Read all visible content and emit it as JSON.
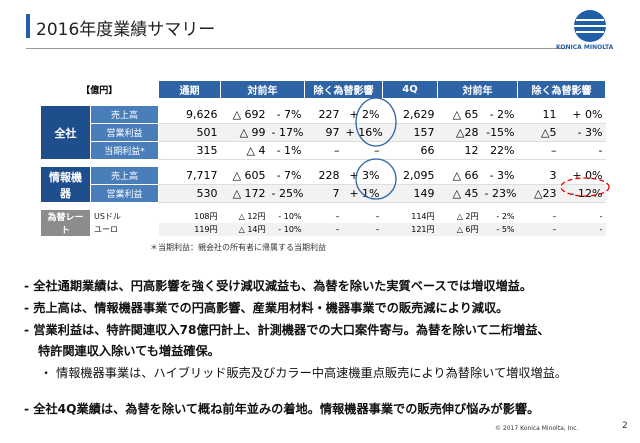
{
  "header": {
    "title": "2016年度業績サマリー",
    "logo": "KONICA MINOLTA"
  },
  "table": {
    "unit": "【億円】",
    "columns": [
      "通期",
      "対前年",
      "除く為替影響",
      "4Q",
      "対前年",
      "除く為替影響"
    ],
    "groups": [
      {
        "label": "全社",
        "rows": [
          {
            "label": "売上高",
            "cells": [
              "9,626",
              "△ 692",
              "- 7%",
              "227",
              "+ 2%",
              "2,629",
              "△ 65",
              "- 2%",
              "11",
              "+ 0%"
            ]
          },
          {
            "label": "営業利益",
            "cells": [
              "501",
              "△ 99",
              "- 17%",
              "97",
              "+ 16%",
              "157",
              "△28",
              "-15%",
              "△5",
              "- 3%"
            ]
          },
          {
            "label": "当期利益*",
            "cells": [
              "315",
              "△ 4",
              "- 1%",
              "–",
              "–",
              "66",
              "12",
              "22%",
              "–",
              "-"
            ]
          }
        ]
      },
      {
        "label": "情報機器",
        "rows": [
          {
            "label": "売上高",
            "cells": [
              "7,717",
              "△ 605",
              "- 7%",
              "228",
              "+ 3%",
              "2,095",
              "△ 66",
              "- 3%",
              "3",
              "+ 0%"
            ]
          },
          {
            "label": "営業利益",
            "cells": [
              "530",
              "△ 172",
              "- 25%",
              "7",
              "+ 1%",
              "149",
              "△ 45",
              "- 23%",
              "△23",
              "- 12%"
            ]
          }
        ]
      },
      {
        "label": "為替レート",
        "rows": [
          {
            "label": "USドル",
            "cells": [
              "108円",
              "△ 12円",
              "- 10%",
              "–",
              "–",
              "114円",
              "△ 2円",
              "- 2%",
              "–",
              "-"
            ]
          },
          {
            "label": "ユーロ",
            "cells": [
              "119円",
              "△ 14円",
              "- 10%",
              "–",
              "–",
              "121円",
              "△ 6円",
              "- 5%",
              "–",
              "-"
            ]
          }
        ]
      }
    ]
  },
  "footnote": "＊当期利益：親会社の所有者に帰属する当期利益",
  "bullets": [
    "- 全社通期業績は、円高影響を強く受け減収減益も、為替を除いた実質ベースでは増収増益。",
    "- 売上高は、情報機器事業での円高影響、産業用材料・機器事業での販売減により減収。",
    "- 営業利益は、特許関連収入78億円計上、計測機器での大口案件寄与。為替を除いて二桁増益、",
    "特許関連収入除いても増益確保。",
    "・ 情報機器事業は、ハイブリッド販売及びカラー中高速機重点販売により為替除いて増収増益。",
    "- 全社4Q業績は、為替を除いて概ね前年並みの着地。情報機器事業での販売伸び悩みが影響。"
  ],
  "footer": {
    "copyright": "© 2017 Konica Minolta, Inc.",
    "page": "2"
  }
}
